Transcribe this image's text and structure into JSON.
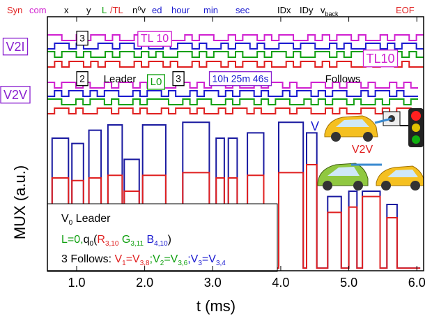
{
  "chart_data": {
    "type": "line",
    "x_label": "t (ms)",
    "y_label": "MUX (a.u.)",
    "xlim": [
      0.57,
      6.1
    ],
    "ylim": [
      0,
      100
    ],
    "xticks": [
      {
        "value": 1,
        "label": "1.0"
      },
      {
        "value": 2,
        "label": "2.0"
      },
      {
        "value": 3,
        "label": "3.0"
      },
      {
        "value": 4,
        "label": "4.0"
      },
      {
        "value": 5,
        "label": "5.0"
      },
      {
        "value": 6,
        "label": "6.0"
      }
    ],
    "x": [
      0.6,
      0.64,
      0.64,
      0.88,
      0.88,
      0.93,
      0.93,
      1.1,
      1.1,
      1.18,
      1.18,
      1.36,
      1.36,
      1.46,
      1.46,
      1.67,
      1.67,
      1.7,
      1.7,
      1.92,
      1.92,
      1.97,
      1.97,
      2.31,
      2.31,
      2.56,
      2.56,
      2.95,
      2.95,
      3.05,
      3.05,
      3.17,
      3.17,
      3.23,
      3.23,
      3.36,
      3.36,
      3.51,
      3.51,
      3.75,
      3.75,
      3.97,
      3.97,
      4.33,
      4.33,
      4.38,
      4.38,
      4.53,
      4.53,
      4.69,
      4.69,
      4.89,
      4.89,
      5.0,
      5.0,
      5.12,
      5.12,
      5.2,
      5.2,
      5.46,
      5.46,
      5.56,
      5.56,
      5.71,
      5.71,
      6.05
    ],
    "series": [
      {
        "color": "#1a1aa0",
        "values": [
          1,
          1,
          50,
          50,
          1,
          1,
          48,
          48,
          1,
          1,
          53,
          53,
          1,
          1,
          55,
          55,
          1,
          1,
          42,
          42,
          1,
          1,
          55,
          55,
          1,
          1,
          56,
          56,
          1,
          1,
          50,
          50,
          1,
          1,
          50,
          50,
          1,
          1,
          52,
          52,
          1,
          1,
          56,
          56,
          1,
          1,
          52,
          52,
          1,
          1,
          28,
          28,
          1,
          1,
          30,
          30,
          1,
          1,
          30,
          30,
          1,
          1,
          25,
          25,
          1,
          1
        ]
      },
      {
        "color": "#e02020",
        "values": [
          1,
          1,
          35,
          35,
          1,
          1,
          34,
          34,
          1,
          1,
          35,
          35,
          1,
          1,
          36,
          36,
          1,
          1,
          30,
          30,
          1,
          1,
          36,
          36,
          1,
          1,
          37,
          37,
          1,
          1,
          35,
          35,
          1,
          1,
          35,
          35,
          1,
          1,
          36,
          36,
          1,
          1,
          37,
          37,
          1,
          1,
          40,
          40,
          1,
          1,
          22,
          22,
          1,
          1,
          24,
          24,
          1,
          1,
          28,
          28,
          1,
          1,
          20,
          20,
          1,
          1
        ]
      }
    ],
    "header_labels": [
      {
        "text": "Syn",
        "color": "#e02020"
      },
      {
        "text": "com",
        "color": "#d020d0"
      },
      {
        "text": "x",
        "color": "#000000"
      },
      {
        "text": "y",
        "color": "#000000"
      },
      {
        "text": "L",
        "color": "#10a010"
      },
      {
        "text": "/TL",
        "color": "#e02020"
      },
      {
        "text": "n⁰v",
        "color": "#000000"
      },
      {
        "text": "ed",
        "color": "#1a1ad0"
      },
      {
        "text": "hour",
        "color": "#1a1ad0"
      },
      {
        "text": "min",
        "color": "#1a1ad0"
      },
      {
        "text": "sec",
        "color": "#1a1ad0"
      },
      {
        "text": "IDx",
        "color": "#000000"
      },
      {
        "text": "IDy",
        "color": "#000000"
      },
      {
        "text": "v",
        "sub": "back",
        "color": "#000000"
      },
      {
        "text": "EOF",
        "color": "#e02020"
      }
    ],
    "annotations": [
      {
        "text": "V2I",
        "color": "#8a20d0",
        "border": "#8a20d0"
      },
      {
        "text": "3",
        "color": "#000000",
        "border": "#000000"
      },
      {
        "text": "TL 10",
        "color": "#d020d0",
        "border": "#d020d0"
      },
      {
        "text": "TL10",
        "color": "#d020d0",
        "border": "#d020d0"
      },
      {
        "text": "V2V",
        "color": "#8a20d0",
        "border": "#8a20d0"
      },
      {
        "text": "2",
        "color": "#000000",
        "border": "#000000"
      },
      {
        "text": "Leader",
        "color": "#000000"
      },
      {
        "text": "L0",
        "color": "#10a010",
        "border": "#10a010"
      },
      {
        "text": "3",
        "color": "#000000",
        "border": "#000000"
      },
      {
        "text": "10h 25m 46s",
        "color": "#1a1ad0",
        "border": "#8a20d0"
      },
      {
        "text": "Follows",
        "color": "#000000"
      },
      {
        "text": "V",
        "color": "#1a1ad0"
      },
      {
        "text": "V2V",
        "color": "#e02020"
      }
    ],
    "legend_lines": [
      [
        {
          "text": "V",
          "color": "#000000",
          "sub": "0"
        },
        {
          "text": " Leader",
          "color": "#000000"
        }
      ],
      [
        {
          "text": "L=0,",
          "color": "#10a010"
        },
        {
          "text": "q",
          "color": "#000000",
          "sub": "0"
        },
        {
          "text": "(",
          "color": "#000000"
        },
        {
          "text": "R",
          "color": "#e02020",
          "sub": "3,10"
        },
        {
          "text": " G",
          "color": "#10a010",
          "sub": "3,11"
        },
        {
          "text": " B",
          "color": "#1a1ad0",
          "sub": "4,10"
        },
        {
          "text": ")",
          "color": "#000000"
        }
      ],
      [
        {
          "text": "3 Follows: ",
          "color": "#000000"
        },
        {
          "text": "V",
          "color": "#e02020",
          "sub": "1"
        },
        {
          "text": "=V",
          "color": "#e02020",
          "sub": "3,8"
        },
        {
          "text": ";V",
          "color": "#10a010",
          "sub": "2"
        },
        {
          "text": "=V",
          "color": "#10a010",
          "sub": "3,6"
        },
        {
          "text": ";V",
          "color": "#1a1ad0",
          "sub": "3"
        },
        {
          "text": "=V",
          "color": "#1a1ad0",
          "sub": "3,4"
        }
      ]
    ]
  }
}
